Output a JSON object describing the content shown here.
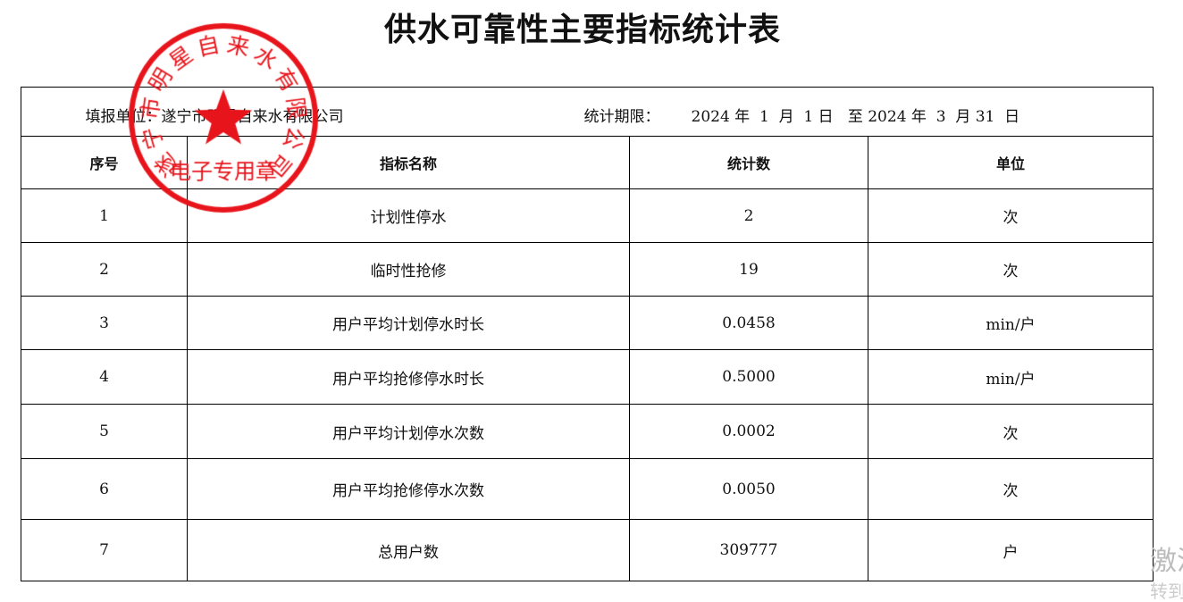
{
  "title": "供水可靠性主要指标统计表",
  "info": {
    "unit_label": "填报单位：",
    "unit_name": "遂宁市明星自来水有限公司",
    "period_label": "统计期限：",
    "period_text": "2024 年  1  月  1 日   至 2024 年  3  月 31  日"
  },
  "columns": [
    "序号",
    "指标名称",
    "统计数",
    "单位"
  ],
  "rows": [
    [
      "1",
      "计划性停水",
      "2",
      "次"
    ],
    [
      "2",
      "临时性抢修",
      "19",
      "次"
    ],
    [
      "3",
      "用户平均计划停水时长",
      "0.0458",
      "min/户"
    ],
    [
      "4",
      "用户平均抢修停水时长",
      "0.5000",
      "min/户"
    ],
    [
      "5",
      "用户平均计划停水次数",
      "0.0002",
      "次"
    ],
    [
      "6",
      "用户平均抢修停水次数",
      "0.0050",
      "次"
    ],
    [
      "7",
      "总用户数",
      "309777",
      "户"
    ]
  ],
  "seal": {
    "ring_text": "遂宁市明星自来水有限公司",
    "bottom_text": "电子专用章",
    "color": "#e8141b"
  },
  "watermark": {
    "line1": "激活",
    "line2": "转到"
  }
}
